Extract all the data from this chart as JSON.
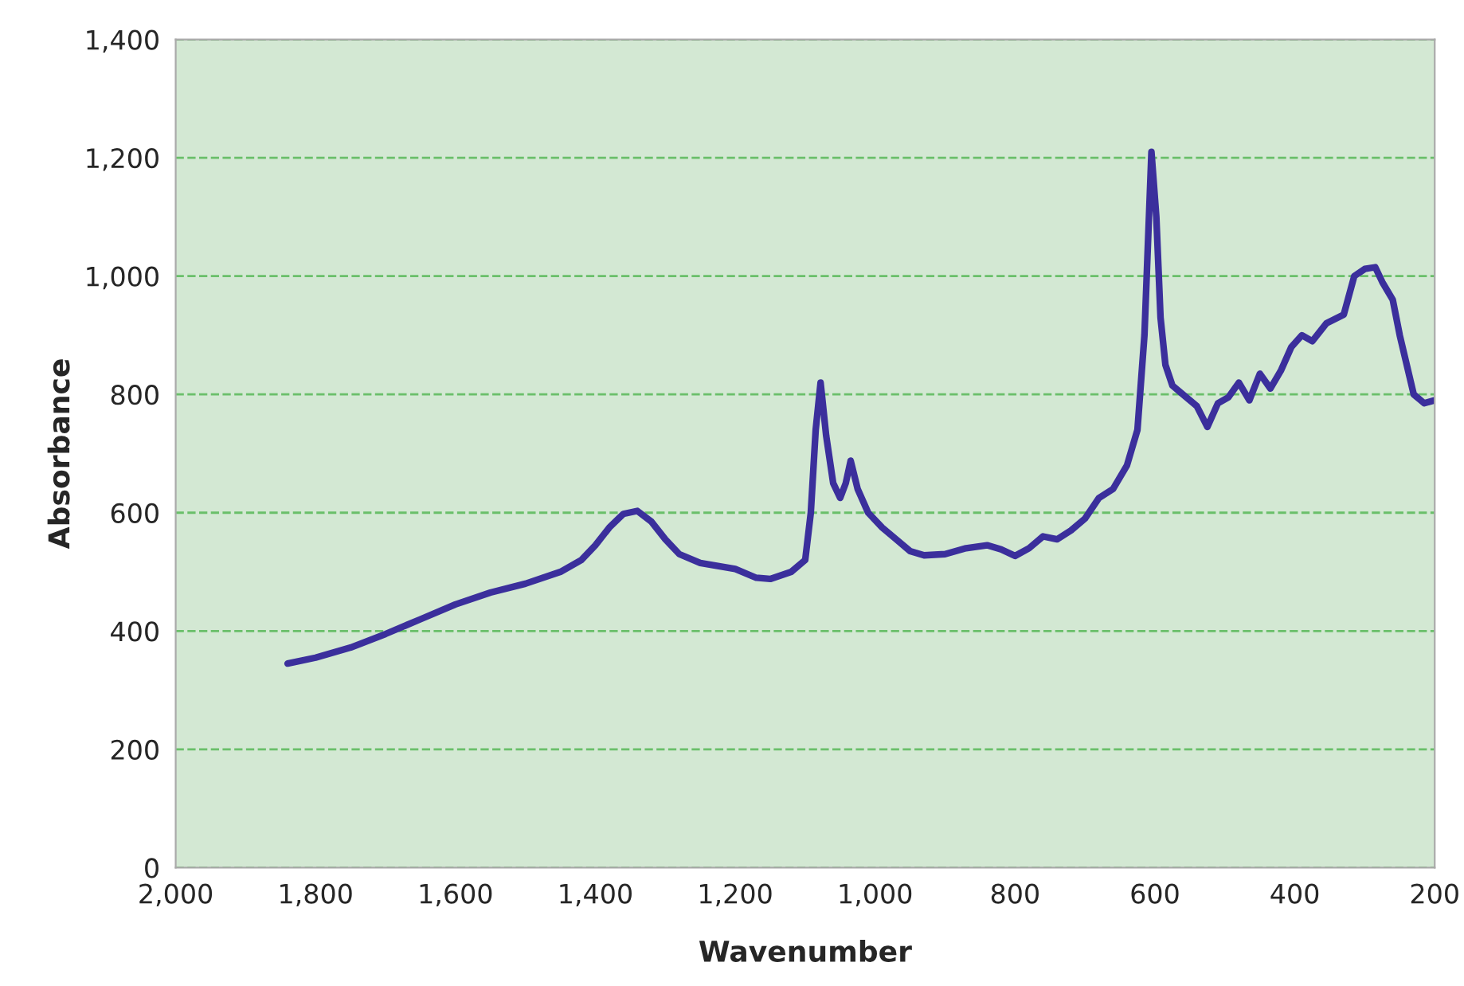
{
  "chart_data": {
    "type": "line",
    "xlabel": "Wavenumber",
    "ylabel": "Absorbance",
    "xlim": [
      2000,
      200
    ],
    "xticks": [
      {
        "value": 2000,
        "label": "2,000"
      },
      {
        "value": 1800,
        "label": "1,800"
      },
      {
        "value": 1600,
        "label": "1,600"
      },
      {
        "value": 1400,
        "label": "1,400"
      },
      {
        "value": 1200,
        "label": "1,200"
      },
      {
        "value": 1000,
        "label": "1,000"
      },
      800,
      600,
      400,
      200
    ],
    "ylim": [
      0,
      1400
    ],
    "yticks": [
      0,
      200,
      400,
      600,
      800,
      {
        "value": 1000,
        "label": "1,000"
      },
      {
        "value": 1200,
        "label": "1,200"
      },
      {
        "value": 1400,
        "label": "1,400"
      }
    ],
    "grid": "y",
    "marker": "none",
    "line_style": "solid",
    "series": [
      {
        "color": "#3b2f9c",
        "x": [
          1840,
          1800,
          1750,
          1700,
          1650,
          1600,
          1550,
          1500,
          1450,
          1420,
          1400,
          1380,
          1360,
          1340,
          1320,
          1300,
          1280,
          1250,
          1200,
          1170,
          1150,
          1120,
          1100,
          1092,
          1085,
          1078,
          1070,
          1060,
          1050,
          1042,
          1035,
          1025,
          1010,
          990,
          970,
          950,
          930,
          900,
          870,
          840,
          820,
          800,
          780,
          760,
          740,
          720,
          700,
          680,
          660,
          640,
          625,
          615,
          605,
          598,
          592,
          585,
          575,
          560,
          540,
          525,
          510,
          495,
          480,
          465,
          450,
          435,
          420,
          405,
          390,
          375,
          355,
          330,
          315,
          300,
          285,
          275,
          260,
          250,
          230,
          215,
          200
        ],
        "values": [
          345,
          355,
          372,
          395,
          420,
          445,
          465,
          480,
          500,
          520,
          545,
          575,
          598,
          603,
          585,
          555,
          530,
          515,
          505,
          490,
          488,
          500,
          520,
          600,
          740,
          820,
          730,
          650,
          625,
          650,
          688,
          640,
          600,
          575,
          555,
          535,
          528,
          530,
          540,
          545,
          538,
          527,
          540,
          560,
          555,
          570,
          590,
          625,
          640,
          680,
          740,
          900,
          1210,
          1100,
          930,
          850,
          815,
          800,
          780,
          745,
          785,
          795,
          820,
          790,
          835,
          810,
          840,
          880,
          900,
          890,
          920,
          935,
          1000,
          1012,
          1015,
          990,
          960,
          900,
          800,
          785,
          790
        ]
      }
    ]
  }
}
